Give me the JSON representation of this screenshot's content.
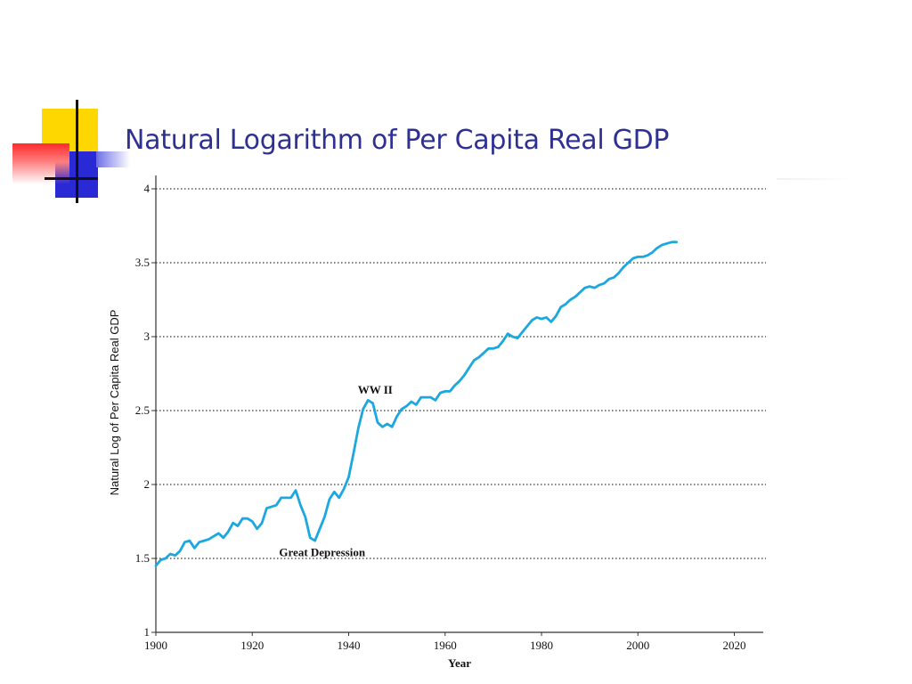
{
  "slide": {
    "title": "Natural Logarithm of Per Capita Real GDP"
  },
  "chart_data": {
    "type": "line",
    "xlabel": "Year",
    "ylabel": "Natural Log of Per Capita Real GDP",
    "xlim": [
      1900,
      2026
    ],
    "ylim": [
      1,
      4
    ],
    "x_ticks": [
      1900,
      1920,
      1940,
      1960,
      1980,
      2000,
      2020
    ],
    "y_ticks": [
      1,
      1.5,
      2,
      2.5,
      3,
      3.5,
      4
    ],
    "y_tick_labels": [
      "1",
      "1.5",
      "2",
      "2.5",
      "3",
      "3.5",
      "4"
    ],
    "grid": "horizontal dotted",
    "line_color": "#1ba8e0",
    "series": [
      {
        "x": [
          1900,
          1901,
          1902,
          1903,
          1904,
          1905,
          1906,
          1907,
          1908,
          1909,
          1910,
          1911,
          1912,
          1913,
          1914,
          1915,
          1916,
          1917,
          1918,
          1919,
          1920,
          1921,
          1922,
          1923,
          1924,
          1925,
          1926,
          1927,
          1928,
          1929,
          1930,
          1931,
          1932,
          1933,
          1934,
          1935,
          1936,
          1937,
          1938,
          1939,
          1940,
          1941,
          1942,
          1943,
          1944,
          1945,
          1946,
          1947,
          1948,
          1949,
          1950,
          1951,
          1952,
          1953,
          1954,
          1955,
          1956,
          1957,
          1958,
          1959,
          1960,
          1961,
          1962,
          1963,
          1964,
          1965,
          1966,
          1967,
          1968,
          1969,
          1970,
          1971,
          1972,
          1973,
          1974,
          1975,
          1976,
          1977,
          1978,
          1979,
          1980,
          1981,
          1982,
          1983,
          1984,
          1985,
          1986,
          1987,
          1988,
          1989,
          1990,
          1991,
          1992,
          1993,
          1994,
          1995,
          1996,
          1997,
          1998,
          1999,
          2000,
          2001,
          2002,
          2003,
          2004,
          2005,
          2006,
          2007,
          2008
        ],
        "y": [
          1.45,
          1.49,
          1.5,
          1.53,
          1.52,
          1.55,
          1.61,
          1.62,
          1.57,
          1.61,
          1.62,
          1.63,
          1.65,
          1.67,
          1.64,
          1.68,
          1.74,
          1.72,
          1.77,
          1.77,
          1.75,
          1.7,
          1.74,
          1.84,
          1.85,
          1.86,
          1.91,
          1.91,
          1.91,
          1.96,
          1.86,
          1.78,
          1.64,
          1.62,
          1.7,
          1.78,
          1.9,
          1.95,
          1.91,
          1.97,
          2.05,
          2.21,
          2.38,
          2.51,
          2.57,
          2.55,
          2.42,
          2.39,
          2.41,
          2.39,
          2.46,
          2.51,
          2.53,
          2.56,
          2.54,
          2.59,
          2.59,
          2.59,
          2.57,
          2.62,
          2.63,
          2.63,
          2.67,
          2.7,
          2.74,
          2.79,
          2.84,
          2.86,
          2.89,
          2.92,
          2.92,
          2.93,
          2.97,
          3.02,
          3.0,
          2.99,
          3.03,
          3.07,
          3.11,
          3.13,
          3.12,
          3.13,
          3.1,
          3.14,
          3.2,
          3.22,
          3.25,
          3.27,
          3.3,
          3.33,
          3.34,
          3.33,
          3.35,
          3.36,
          3.39,
          3.4,
          3.43,
          3.47,
          3.5,
          3.53,
          3.54,
          3.54,
          3.55,
          3.57,
          3.6,
          3.62,
          3.63,
          3.64,
          3.64
        ]
      }
    ],
    "annotations": [
      {
        "text": "WW II",
        "x": 1945.5,
        "y": 2.64
      },
      {
        "text": "Great Depression",
        "x": 1934.5,
        "y": 1.54
      }
    ]
  }
}
